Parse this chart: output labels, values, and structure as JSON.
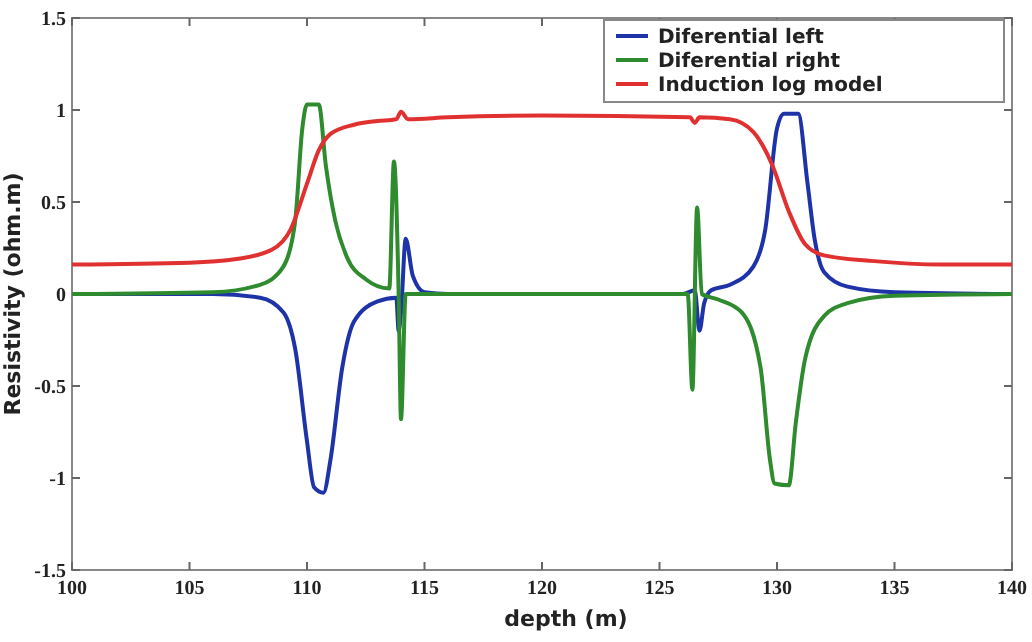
{
  "chart_data": {
    "type": "line",
    "xlabel": "depth (m)",
    "ylabel": "Resistivity (ohm.m)",
    "xlim": [
      100,
      140
    ],
    "xticks": [
      100,
      105,
      110,
      115,
      120,
      125,
      130,
      135,
      140
    ],
    "ylim": [
      -1.5,
      1.5
    ],
    "yticks": [
      -1.5,
      -1,
      -0.5,
      0,
      0.5,
      1,
      1.5
    ],
    "grid": false,
    "legend": "top right",
    "line_style": "solid",
    "marker": "none",
    "series": [
      {
        "name": "Diferential left",
        "color": "#1f33a8",
        "x": [
          100,
          106,
          108,
          109,
          109.5,
          110,
          110.3,
          110.7,
          111,
          111.5,
          112,
          113,
          113.8,
          113.9,
          114,
          114.2,
          114.5,
          115,
          116,
          126,
          126.5,
          126.7,
          126.9,
          127.2,
          128,
          129,
          129.5,
          130,
          130.3,
          130.9,
          131.3,
          131.6,
          132,
          133,
          135,
          140
        ],
        "values": [
          0,
          0,
          -0.02,
          -0.1,
          -0.3,
          -0.8,
          -1.05,
          -1.08,
          -0.9,
          -0.4,
          -0.15,
          -0.04,
          -0.02,
          -0.2,
          -0.1,
          0.3,
          0.1,
          0.01,
          0,
          0,
          0.02,
          -0.2,
          -0.05,
          0.02,
          0.05,
          0.15,
          0.35,
          0.9,
          0.98,
          0.98,
          0.6,
          0.3,
          0.12,
          0.04,
          0.01,
          0
        ]
      },
      {
        "name": "Diferential right",
        "color": "#2e8b2e",
        "x": [
          100,
          106,
          108,
          109,
          109.5,
          109.8,
          110,
          110.5,
          110.8,
          111.2,
          111.7,
          112.5,
          113.5,
          113.7,
          113.9,
          114,
          114.2,
          114.5,
          126.2,
          126.4,
          126.6,
          126.8,
          127.5,
          128.5,
          129.3,
          129.7,
          129.9,
          130.5,
          130.8,
          131.2,
          132,
          133,
          135,
          140
        ],
        "values": [
          0,
          0.01,
          0.05,
          0.15,
          0.4,
          0.9,
          1.03,
          1.03,
          0.7,
          0.4,
          0.2,
          0.08,
          0.03,
          0.72,
          0,
          -0.68,
          0,
          0,
          0,
          -0.52,
          0.47,
          0,
          -0.03,
          -0.1,
          -0.4,
          -0.9,
          -1.03,
          -1.04,
          -0.7,
          -0.35,
          -0.12,
          -0.05,
          -0.01,
          0
        ]
      },
      {
        "name": "Induction log model",
        "color": "#e03030",
        "x": [
          100,
          105,
          107,
          108.5,
          109.3,
          110,
          110.5,
          111,
          112,
          113,
          113.8,
          114,
          114.3,
          116,
          120,
          126.3,
          126.5,
          126.7,
          128,
          129,
          129.8,
          130.5,
          131.2,
          132,
          134,
          137,
          140
        ],
        "values": [
          0.16,
          0.17,
          0.19,
          0.24,
          0.35,
          0.6,
          0.78,
          0.87,
          0.92,
          0.94,
          0.95,
          0.99,
          0.95,
          0.96,
          0.97,
          0.96,
          0.93,
          0.96,
          0.95,
          0.88,
          0.7,
          0.45,
          0.27,
          0.21,
          0.18,
          0.16,
          0.16
        ]
      }
    ]
  }
}
